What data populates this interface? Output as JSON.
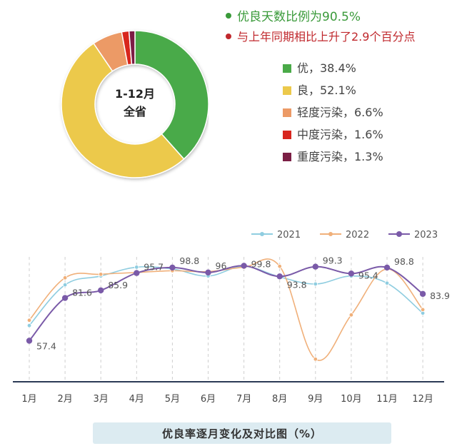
{
  "headline": {
    "rate_text": "优良天数比例为90.5%",
    "rate_color": "#3a9a3a",
    "change_text": "与上年同期相比上升了2.9个百分点",
    "change_color": "#c0282d"
  },
  "chart_data": [
    {
      "type": "pie",
      "center_label_line1": "1-12月",
      "center_label_line2": "全省",
      "slices": [
        {
          "label": "优，38.4%",
          "value": 38.4,
          "color": "#4aaa48"
        },
        {
          "label": "良，52.1%",
          "value": 52.1,
          "color": "#ecc94b"
        },
        {
          "label": "轻度污染，6.6%",
          "value": 6.6,
          "color": "#ec9a66"
        },
        {
          "label": "中度污染，1.6%",
          "value": 1.6,
          "color": "#d8261f"
        },
        {
          "label": "重度污染，1.3%",
          "value": 1.3,
          "color": "#7b1f45"
        }
      ]
    },
    {
      "type": "line",
      "title": "优良率逐月变化及对比图（%）",
      "categories": [
        "1月",
        "2月",
        "3月",
        "4月",
        "5月",
        "6月",
        "7月",
        "8月",
        "9月",
        "10月",
        "11月",
        "12月"
      ],
      "ylim": [
        35,
        102
      ],
      "grid": false,
      "legend_position": "top-right",
      "series": [
        {
          "name": "2021",
          "color": "#8fcde0",
          "values": [
            66,
            89,
            94,
            99,
            98,
            94,
            99.5,
            93.5,
            89.5,
            94,
            90,
            73
          ],
          "show_labels": false
        },
        {
          "name": "2022",
          "color": "#f0b07a",
          "values": [
            69,
            93,
            95,
            96,
            97,
            96.5,
            99,
            99.5,
            47,
            72,
            98,
            75
          ],
          "show_labels": false
        },
        {
          "name": "2023",
          "color": "#7a5aa8",
          "values": [
            57.4,
            81.6,
            85.9,
            95.7,
            98.8,
            96,
            99.8,
            93.8,
            99.3,
            95.4,
            98.8,
            83.9
          ],
          "show_labels": true,
          "labels": [
            "57.4",
            "81.6",
            "85.9",
            "95.7",
            "98.8",
            "96",
            "99.8",
            "93.8",
            "99.3",
            "95.4",
            "98.8",
            "83.9"
          ]
        }
      ]
    }
  ]
}
